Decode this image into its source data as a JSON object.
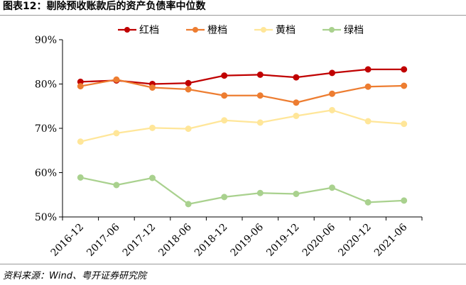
{
  "figure": {
    "title": "图表12：剔除预收账款后的资产负债率中位数",
    "source": "资料来源：Wind、粤开证券研究院"
  },
  "chart_data": {
    "type": "line",
    "title": "",
    "xlabel": "",
    "ylabel": "",
    "categories": [
      "2016-12",
      "2017-06",
      "2017-12",
      "2018-06",
      "2018-12",
      "2019-06",
      "2019-12",
      "2020-06",
      "2020-12",
      "2021-06"
    ],
    "ylim": [
      50,
      90
    ],
    "yticks": [
      50,
      60,
      70,
      80,
      90
    ],
    "ytick_labels": [
      "50%",
      "60%",
      "70%",
      "80%",
      "90%"
    ],
    "grid": false,
    "legend_position": "top",
    "series": [
      {
        "name": "红档",
        "color": "#c00000",
        "values": [
          80.5,
          80.8,
          80.0,
          80.2,
          81.9,
          82.1,
          81.5,
          82.5,
          83.3,
          83.3
        ]
      },
      {
        "name": "橙档",
        "color": "#ed7d31",
        "values": [
          79.5,
          81.0,
          79.2,
          78.8,
          77.4,
          77.4,
          75.8,
          77.8,
          79.4,
          79.6
        ]
      },
      {
        "name": "黄档",
        "color": "#ffe699",
        "values": [
          67.0,
          68.9,
          70.1,
          69.9,
          71.8,
          71.3,
          72.8,
          74.1,
          71.6,
          71.0
        ]
      },
      {
        "name": "绿档",
        "color": "#a9d18e",
        "values": [
          58.9,
          57.2,
          58.8,
          52.9,
          54.5,
          55.4,
          55.2,
          56.6,
          53.3,
          53.7
        ]
      }
    ]
  }
}
